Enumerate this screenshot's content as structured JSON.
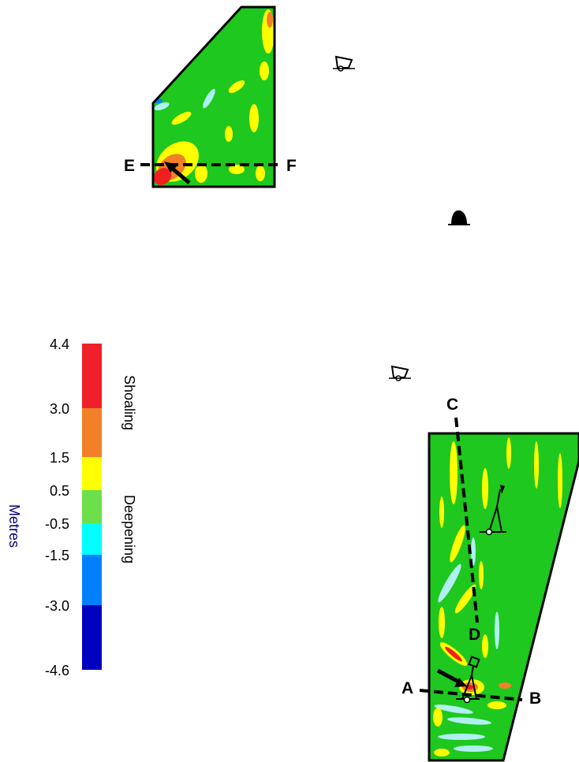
{
  "legend": {
    "unit_label": "Metres",
    "shoaling_label": "Shoaling",
    "deepening_label": "Deepening",
    "ticks": [
      "4.4",
      "3.0",
      "1.5",
      "0.5",
      "-0.5",
      "-1.5",
      "-3.0",
      "-4.6"
    ],
    "bands": [
      {
        "from": 3.0,
        "to": 4.4,
        "color": "#f0202a"
      },
      {
        "from": 1.5,
        "to": 3.0,
        "color": "#f28028"
      },
      {
        "from": 0.5,
        "to": 1.5,
        "color": "#ffff00"
      },
      {
        "from": -0.5,
        "to": 0.5,
        "color": "#6be04a"
      },
      {
        "from": -1.5,
        "to": -0.5,
        "color": "#00ffff"
      },
      {
        "from": -3.0,
        "to": -1.5,
        "color": "#0080ff"
      },
      {
        "from": -4.6,
        "to": -3.0,
        "color": "#0000c0"
      }
    ]
  },
  "sections": {
    "A": "A",
    "B": "B",
    "C": "C",
    "D": "D",
    "E": "E",
    "F": "F"
  },
  "colors": {
    "surface": "#1ec81e",
    "shoal_red": "#f02020",
    "shoal_orange": "#f28028",
    "shoal_yellow": "#ffff00",
    "deep_cyan": "#b0f0f0",
    "deep_blue": "#0080ff",
    "title_blue": "#000080"
  },
  "symbols": [
    "buoy-icon",
    "bell-icon",
    "beacon-icon",
    "anchor-marker-icon"
  ]
}
